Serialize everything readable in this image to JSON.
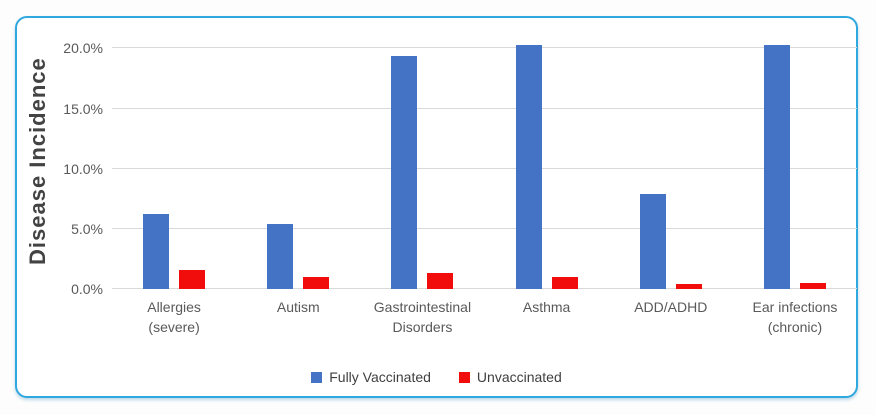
{
  "accent_colors": {
    "card_border": "#2fa8df",
    "gridline": "#d9d9d9",
    "series_blue": "#4472c4",
    "series_red": "#f20d0d"
  },
  "chart_data": {
    "type": "bar",
    "title": "",
    "xlabel": "",
    "ylabel": "Disease Incidence",
    "categories": [
      "Allergies\n(severe)",
      "Autism",
      "Gastrointestinal\nDisorders",
      "Asthma",
      "ADD/ADHD",
      "Ear infections\n(chronic)"
    ],
    "series": [
      {
        "name": "Fully Vaccinated",
        "color": "#4472c4",
        "values": [
          6.2,
          5.4,
          19.4,
          20.3,
          7.9,
          20.3
        ]
      },
      {
        "name": "Unvaccinated",
        "color": "#f20d0d",
        "values": [
          1.6,
          1.0,
          1.3,
          1.0,
          0.4,
          0.5
        ]
      }
    ],
    "yticks": [
      "20.0%",
      "15.0%",
      "10.0%",
      "5.0%",
      "0.0%"
    ],
    "ytick_values": [
      20,
      15,
      10,
      5,
      0
    ],
    "ylim": [
      0,
      21.2
    ],
    "grid": true,
    "legend_position": "bottom"
  }
}
